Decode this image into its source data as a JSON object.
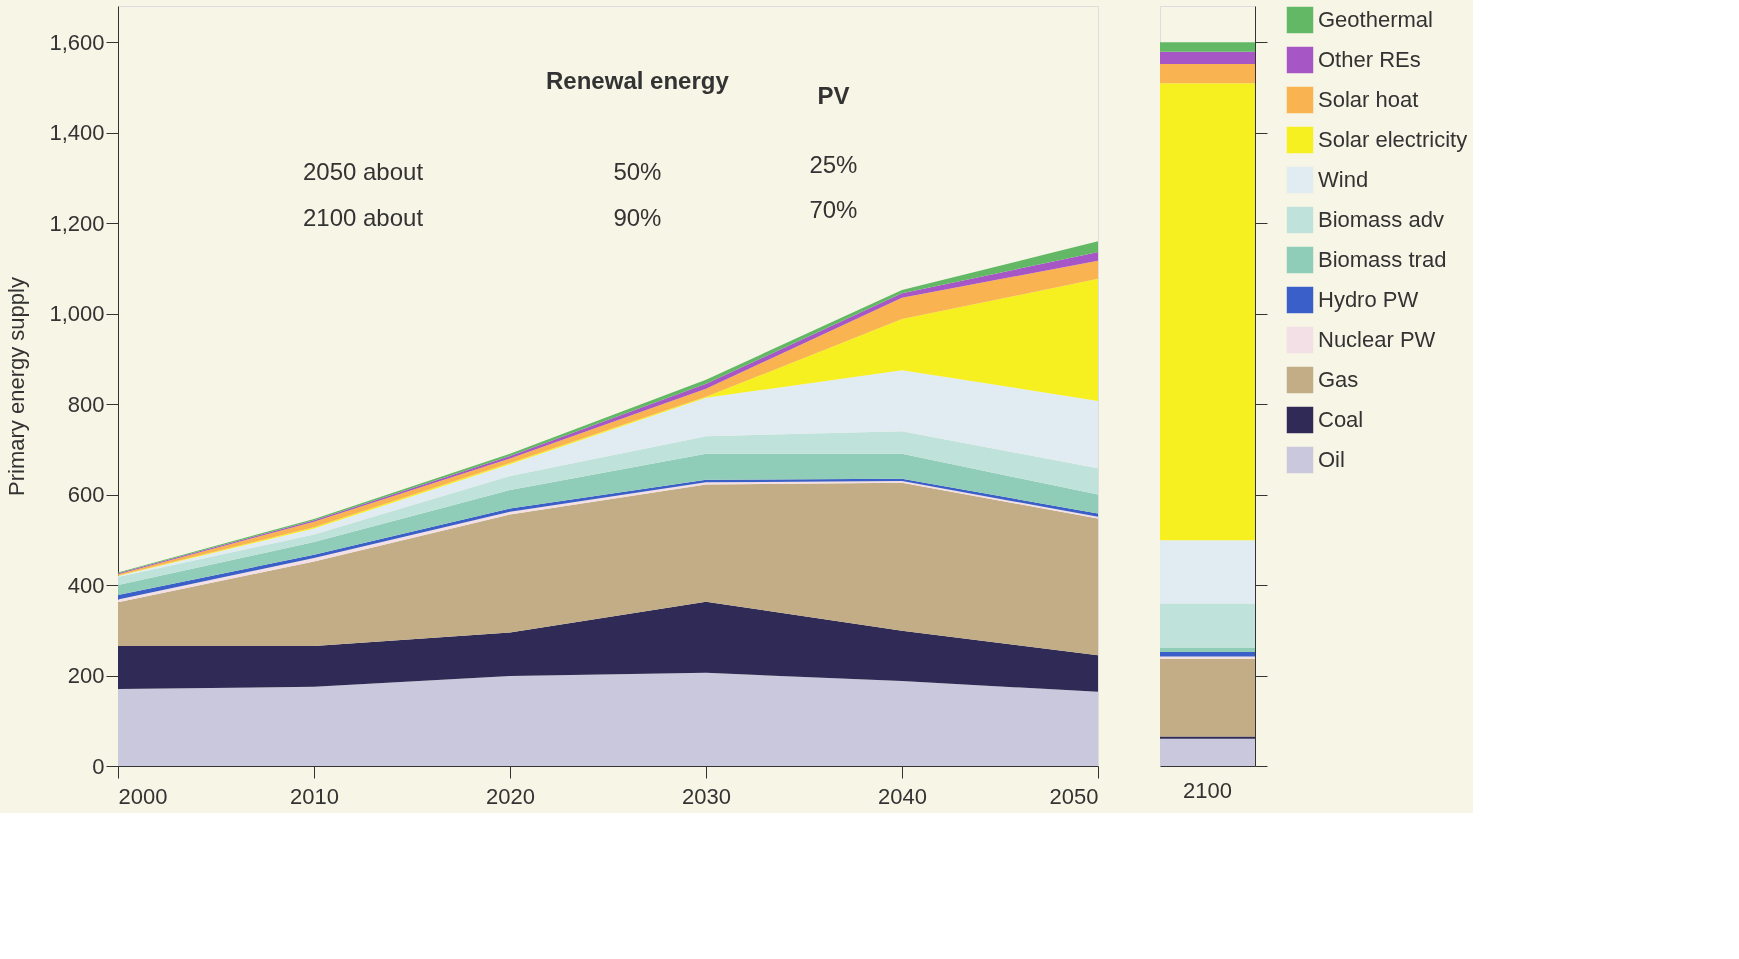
{
  "chart_data": [
    {
      "type": "area",
      "stacked": true,
      "ylabel": "Primary energy supply",
      "x": [
        2000,
        2010,
        2020,
        2030,
        2040,
        2050
      ],
      "xlim": [
        2000,
        2050
      ],
      "xticks": [
        2000,
        2010,
        2020,
        2030,
        2040,
        2050
      ],
      "ylim": [
        0,
        1680
      ],
      "yticks": [
        0,
        200,
        400,
        600,
        800,
        {
          "value": 1000,
          "label": "1,000"
        },
        {
          "value": 1200,
          "label": "1,200"
        },
        {
          "value": 1400,
          "label": "1,400"
        },
        {
          "value": 1600,
          "label": "1,600"
        }
      ],
      "grid": false,
      "legend": "right",
      "annotations": [
        "Renewal energy",
        "PV",
        "2050 about",
        "50%",
        "25%",
        "2100 about",
        "90%",
        "70%"
      ],
      "series": [
        {
          "name": "Oil",
          "color": "#c9c8dc",
          "values": [
            170,
            175,
            199,
            206,
            188,
            164
          ]
        },
        {
          "name": "Coal",
          "color": "#2f2a56",
          "values": [
            95,
            90,
            96,
            157,
            111,
            81
          ]
        },
        {
          "name": "Gas",
          "color": "#c2ad86",
          "values": [
            97,
            187,
            261,
            259,
            327,
            302
          ]
        },
        {
          "name": "Nuclear PW",
          "color": "#f3dfe6",
          "values": [
            6,
            8,
            6,
            5,
            4,
            4
          ]
        },
        {
          "name": "Hydro PW",
          "color": "#3a5fc8",
          "values": [
            10,
            7,
            7,
            6,
            5,
            7
          ]
        },
        {
          "name": "Biomass trad",
          "color": "#8fcdb9",
          "values": [
            22,
            28,
            41,
            57,
            55,
            42
          ]
        },
        {
          "name": "Biomass adv",
          "color": "#bfe3da",
          "values": [
            18,
            17,
            31,
            39,
            50,
            58
          ]
        },
        {
          "name": "Wind",
          "color": "#e1ecf2",
          "values": [
            2,
            13,
            26,
            85,
            135,
            149
          ]
        },
        {
          "name": "Solar electricity",
          "color": "#f6f020",
          "values": [
            1,
            3,
            3,
            2,
            113,
            270
          ]
        },
        {
          "name": "Solar hoat",
          "color": "#f9b451",
          "values": [
            3,
            12,
            10,
            18,
            47,
            40
          ]
        },
        {
          "name": "Other REs",
          "color": "#a756c6",
          "values": [
            2,
            3,
            5,
            11,
            10,
            19
          ]
        },
        {
          "name": "Geothermal",
          "color": "#62b865",
          "values": [
            2,
            3,
            5,
            9,
            7,
            24
          ]
        }
      ]
    },
    {
      "type": "bar",
      "stacked": true,
      "categories": [
        "2100"
      ],
      "ylim": [
        0,
        1680
      ],
      "yticks": [
        {
          "value": 0,
          "label": null
        },
        {
          "value": 200,
          "label": null
        },
        {
          "value": 400,
          "label": null
        },
        {
          "value": 600,
          "label": null
        },
        {
          "value": 800,
          "label": null
        },
        {
          "value": 1000,
          "label": null
        },
        {
          "value": 1200,
          "label": null
        },
        {
          "value": 1400,
          "label": null
        },
        {
          "value": 1600,
          "label": null
        }
      ],
      "tick_labels": "x",
      "grid": false,
      "series": [
        {
          "color": "#c9c8dc",
          "values": [
            60
          ]
        },
        {
          "color": "#2f2a56",
          "values": [
            5
          ]
        },
        {
          "color": "#c2ad86",
          "values": [
            172
          ]
        },
        {
          "color": "#f3dfe6",
          "values": [
            5
          ]
        },
        {
          "color": "#3a5fc8",
          "values": [
            10
          ]
        },
        {
          "color": "#8fcdb9",
          "values": [
            10
          ]
        },
        {
          "color": "#bfe3da",
          "values": [
            97
          ]
        },
        {
          "color": "#e1ecf2",
          "values": [
            140
          ]
        },
        {
          "color": "#f6f020",
          "values": [
            1010
          ]
        },
        {
          "color": "#f9b451",
          "values": [
            43
          ]
        },
        {
          "color": "#a756c6",
          "values": [
            27
          ]
        },
        {
          "color": "#62b865",
          "values": [
            21
          ]
        }
      ]
    }
  ]
}
